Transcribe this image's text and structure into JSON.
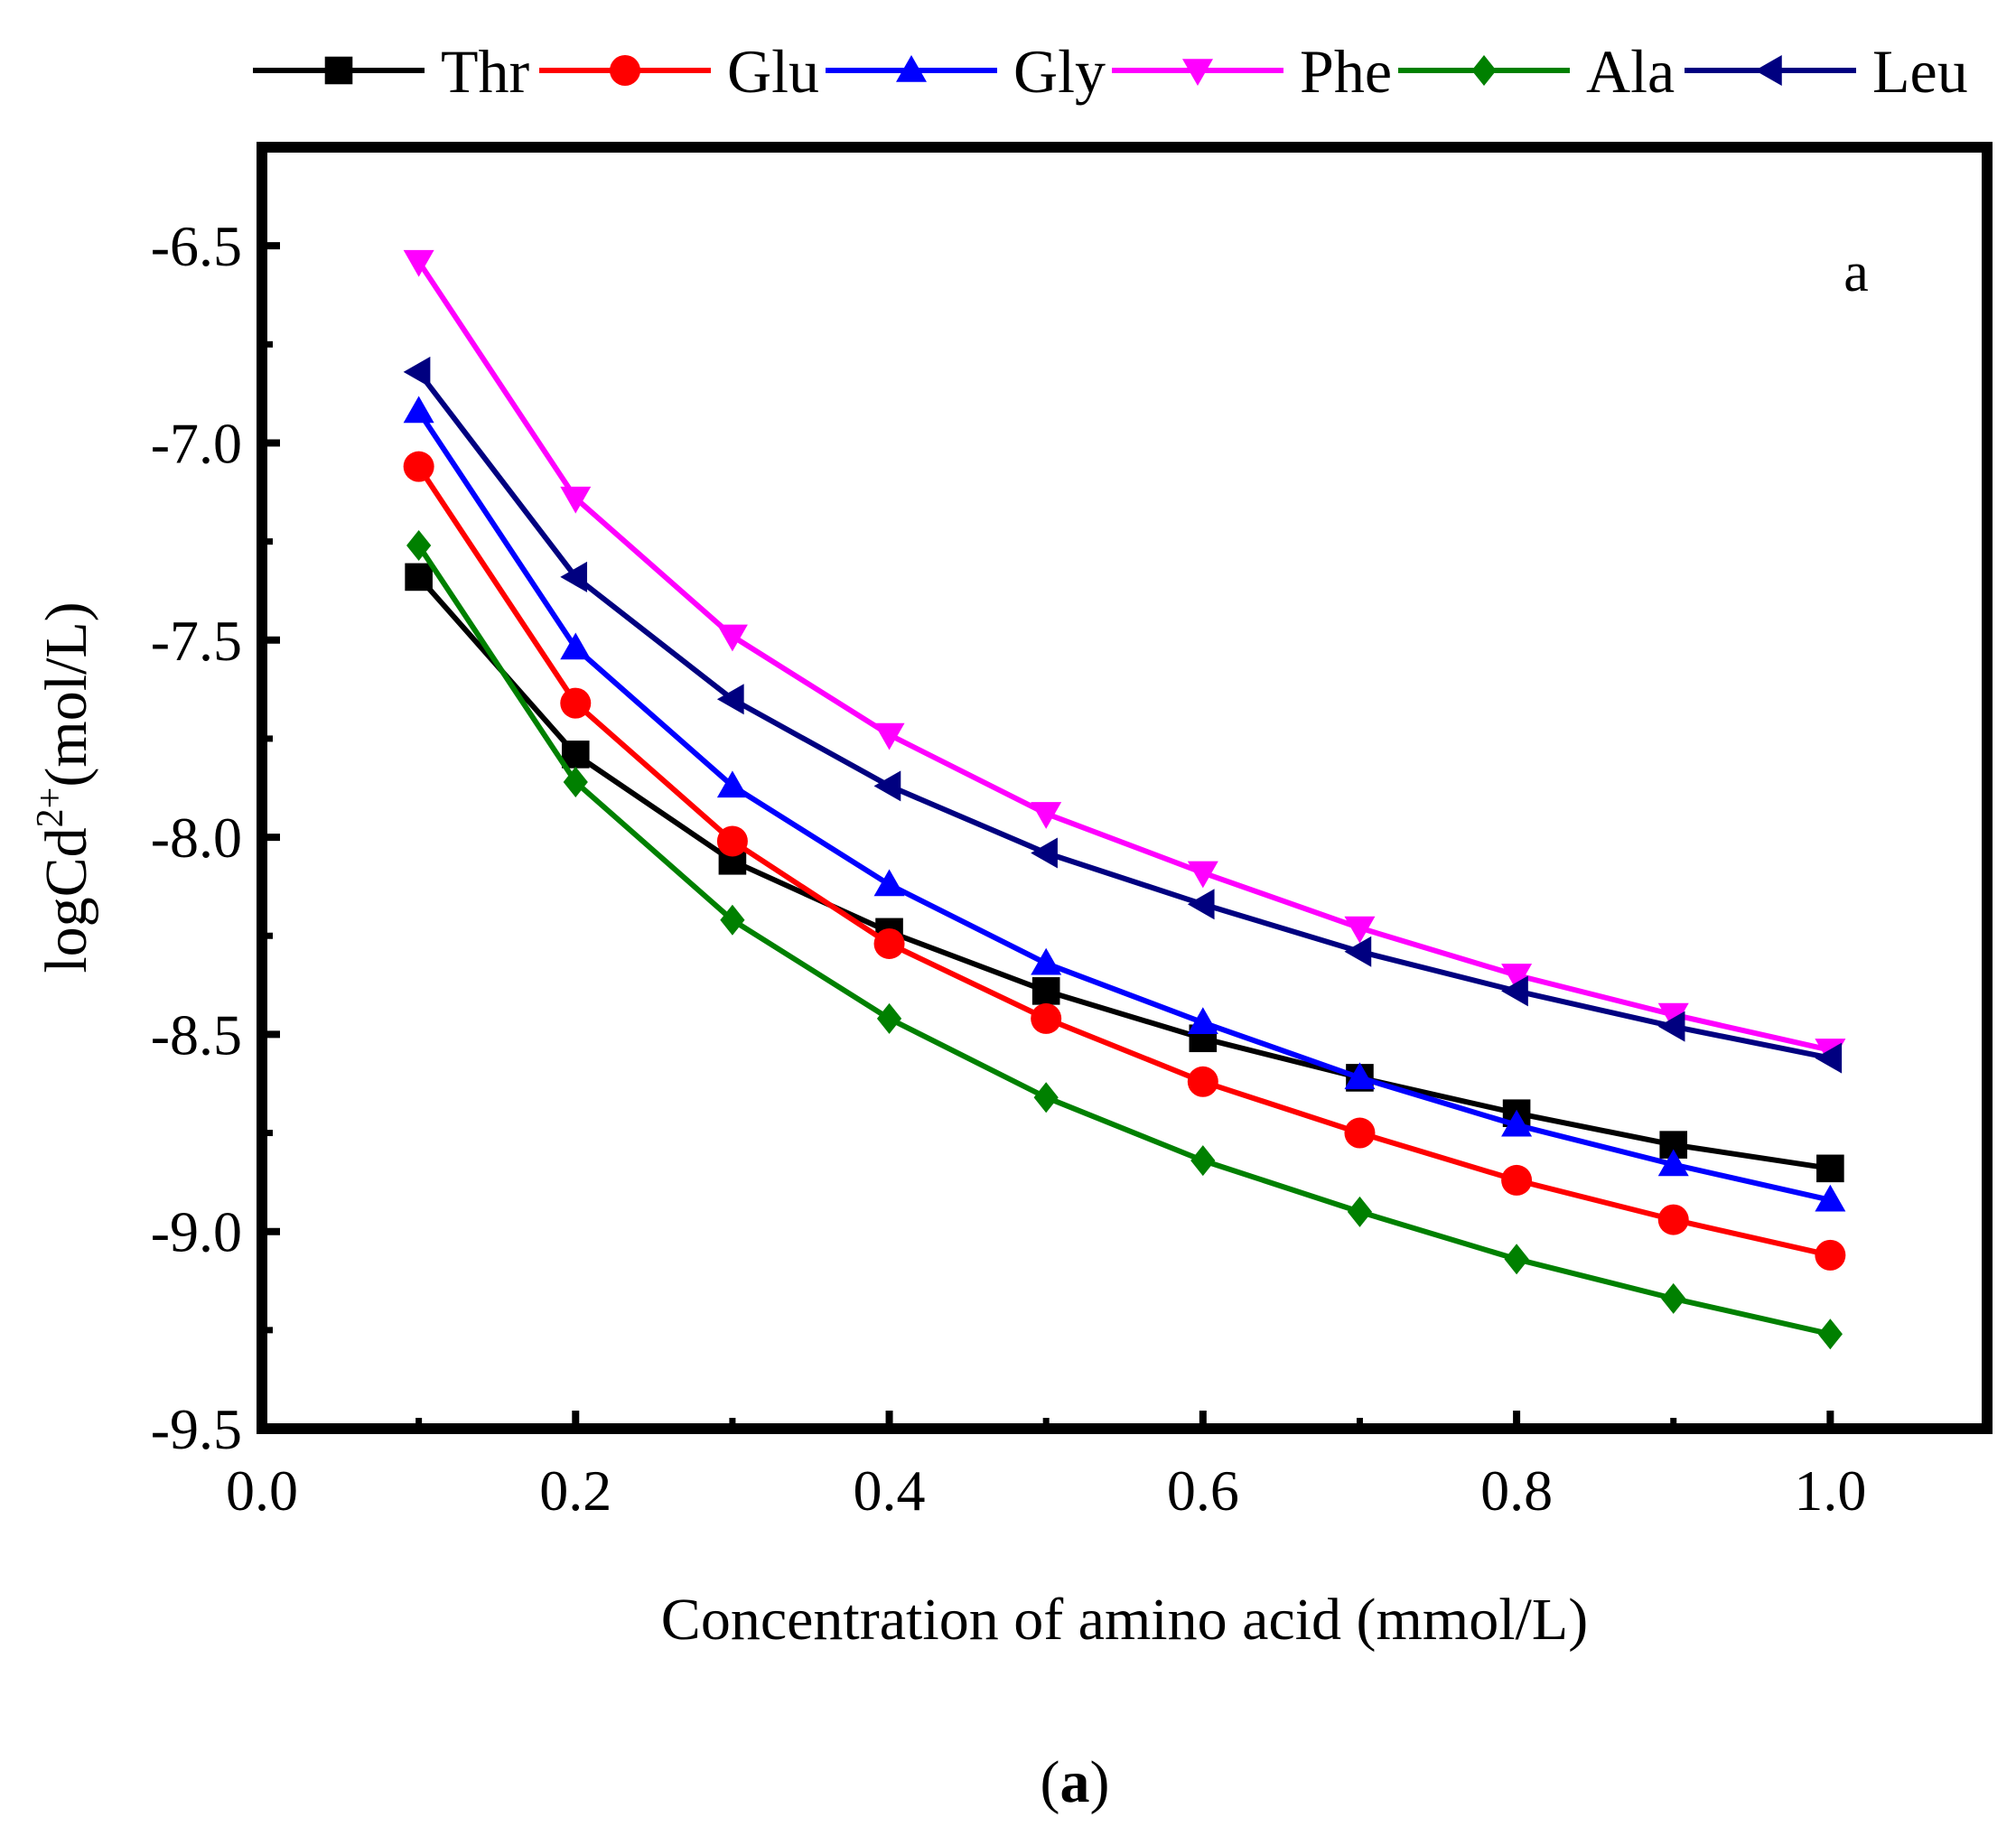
{
  "chart_data": {
    "type": "line",
    "xlabel": "Concentration of amino acid (mmol/L)",
    "ylabel_main": "logCd",
    "ylabel_sup": "2+",
    "ylabel_unit": "(mol/L)",
    "xlim": [
      0.0,
      1.1
    ],
    "ylim": [
      -9.5,
      -6.25
    ],
    "x_ticks": [
      0.0,
      0.2,
      0.4,
      0.6,
      0.8,
      1.0
    ],
    "x_tick_labels": [
      "0.0",
      "0.2",
      "0.4",
      "0.6",
      "0.8",
      "1.0"
    ],
    "y_ticks": [
      -6.5,
      -7.0,
      -7.5,
      -8.0,
      -8.5,
      -9.0,
      -9.5
    ],
    "y_tick_labels": [
      "-6.5",
      "-7.0",
      "-7.5",
      "-8.0",
      "-8.5",
      "-9.0",
      "-9.5"
    ],
    "annotation": "a",
    "caption_open": "(",
    "caption_letter": "a",
    "caption_close": ")",
    "legend_position": "top",
    "x": [
      0.1,
      0.2,
      0.3,
      0.4,
      0.5,
      0.6,
      0.7,
      0.8,
      0.9,
      1.0
    ],
    "series": [
      {
        "name": "Thr",
        "color": "#000000",
        "marker": "square",
        "values": [
          -7.34,
          -7.79,
          -8.06,
          -8.24,
          -8.39,
          -8.51,
          -8.61,
          -8.7,
          -8.78,
          -8.84
        ]
      },
      {
        "name": "Glu",
        "color": "#ff0000",
        "marker": "circle",
        "values": [
          -7.06,
          -7.66,
          -8.01,
          -8.27,
          -8.46,
          -8.62,
          -8.75,
          -8.87,
          -8.97,
          -9.06
        ]
      },
      {
        "name": "Gly",
        "color": "#0000ff",
        "marker": "triangle-up",
        "values": [
          -6.92,
          -7.52,
          -7.87,
          -8.12,
          -8.32,
          -8.47,
          -8.61,
          -8.73,
          -8.83,
          -8.92
        ]
      },
      {
        "name": "Phe",
        "color": "#ff00ff",
        "marker": "triangle-down",
        "values": [
          -6.54,
          -7.14,
          -7.49,
          -7.74,
          -7.94,
          -8.09,
          -8.23,
          -8.35,
          -8.45,
          -8.54
        ]
      },
      {
        "name": "Ala",
        "color": "#008000",
        "marker": "diamond",
        "values": [
          -7.26,
          -7.86,
          -8.21,
          -8.46,
          -8.66,
          -8.82,
          -8.95,
          -9.07,
          -9.17,
          -9.26
        ]
      },
      {
        "name": "Leu",
        "color": "#000080",
        "marker": "triangle-left",
        "values": [
          -6.82,
          -7.34,
          -7.65,
          -7.87,
          -8.04,
          -8.17,
          -8.29,
          -8.39,
          -8.48,
          -8.56
        ]
      }
    ]
  }
}
